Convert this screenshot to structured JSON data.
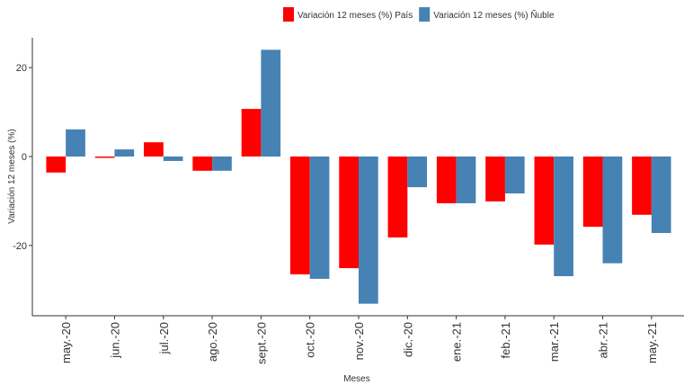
{
  "chart_data": {
    "type": "bar",
    "x_label": "Meses",
    "y_label": "Variación 12 meses (%)",
    "categories": [
      "may.-20",
      "jun.-20",
      "jul.-20",
      "ago.-20",
      "sept.-20",
      "oct.-20",
      "nov.-20",
      "dic.-20",
      "ene.-21",
      "feb.-21",
      "mar.-21",
      "abr.-21",
      "may.-21"
    ],
    "series": [
      {
        "name": "Variación 12 meses (%) País",
        "color": "#ff0000",
        "values": [
          -3.6,
          -0.3,
          3.2,
          -3.2,
          10.7,
          -26.5,
          -25.1,
          -18.2,
          -10.5,
          -10.1,
          -19.8,
          -15.8,
          -13.1
        ]
      },
      {
        "name": "Variación 12 meses (%) Ñuble",
        "color": "#4682b4",
        "values": [
          6.1,
          1.6,
          -1.0,
          -3.2,
          24.0,
          -27.5,
          -33.1,
          -6.9,
          -10.5,
          -8.3,
          -26.9,
          -24.0,
          -17.2
        ]
      }
    ],
    "ylim": [
      -35.8,
      26.7
    ],
    "yticks": [
      -20,
      0,
      20
    ],
    "grid": false,
    "legend": "top"
  }
}
